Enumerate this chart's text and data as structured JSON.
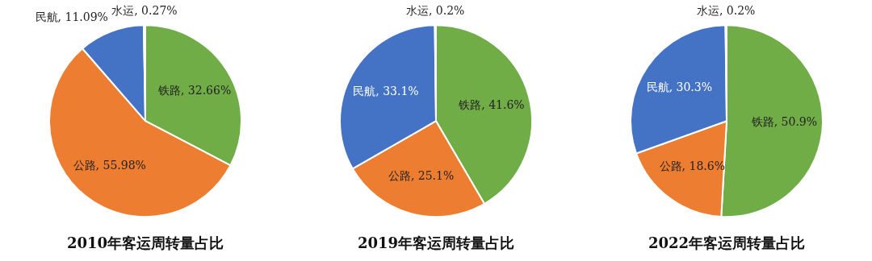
{
  "chart_data": [
    {
      "type": "pie",
      "title": "2010年客运周转量占比",
      "categories": [
        "铁路",
        "公路",
        "民航",
        "水运"
      ],
      "values": [
        32.66,
        55.98,
        11.09,
        0.27
      ],
      "value_labels": [
        "32.66%",
        "55.98%",
        "11.09%",
        "0.27%"
      ],
      "colors": [
        "#70ad47",
        "#ed7d31",
        "#4472c4",
        "#a5a5a5"
      ]
    },
    {
      "type": "pie",
      "title": "2019年客运周转量占比",
      "categories": [
        "铁路",
        "公路",
        "民航",
        "水运"
      ],
      "values": [
        41.6,
        25.1,
        33.1,
        0.2
      ],
      "value_labels": [
        "41.6%",
        "25.1%",
        "33.1%",
        "0.2%"
      ],
      "colors": [
        "#70ad47",
        "#ed7d31",
        "#4472c4",
        "#a5a5a5"
      ]
    },
    {
      "type": "pie",
      "title": "2022年客运周转量占比",
      "categories": [
        "铁路",
        "公路",
        "民航",
        "水运"
      ],
      "values": [
        50.9,
        18.6,
        30.3,
        0.2
      ],
      "value_labels": [
        "50.9%",
        "18.6%",
        "30.3%",
        "0.2%"
      ],
      "colors": [
        "#70ad47",
        "#ed7d31",
        "#4472c4",
        "#a5a5a5"
      ]
    }
  ]
}
